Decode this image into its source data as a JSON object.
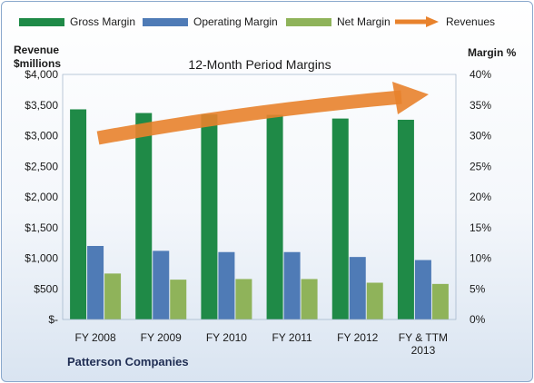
{
  "chart_data": {
    "type": "bar",
    "title": "12-Month Period Margins",
    "company": "Patterson Companies",
    "categories": [
      "FY 2008",
      "FY 2009",
      "FY 2010",
      "FY 2011",
      "FY 2012",
      "FY & TTM 2013"
    ],
    "ylabel_left": "Revenue $millions",
    "ylabel_right": "Margin %",
    "yticks_left": [
      "$-",
      "$500",
      "$1,000",
      "$1,500",
      "$2,000",
      "$2,500",
      "$3,000",
      "$3,500",
      "$4,000"
    ],
    "yticks_right": [
      "0%",
      "5%",
      "10%",
      "15%",
      "20%",
      "25%",
      "30%",
      "35%",
      "40%"
    ],
    "ylim_right": [
      0,
      40
    ],
    "series": [
      {
        "name": "Gross Margin",
        "axis": "right",
        "color": "#1f8a47",
        "values": [
          34.3,
          33.7,
          33.5,
          33.4,
          32.8,
          32.6
        ]
      },
      {
        "name": "Operating Margin",
        "axis": "right",
        "color": "#4f7bb6",
        "values": [
          12.0,
          11.2,
          11.0,
          11.0,
          10.2,
          9.7
        ]
      },
      {
        "name": "Net Margin",
        "axis": "right",
        "color": "#8fb35a",
        "values": [
          7.5,
          6.5,
          6.6,
          6.6,
          6.0,
          5.8
        ]
      }
    ],
    "revenues": {
      "name": "Revenues",
      "color": "#e8822c",
      "trend": "increasing"
    },
    "legend_position": "top",
    "grid": false
  }
}
